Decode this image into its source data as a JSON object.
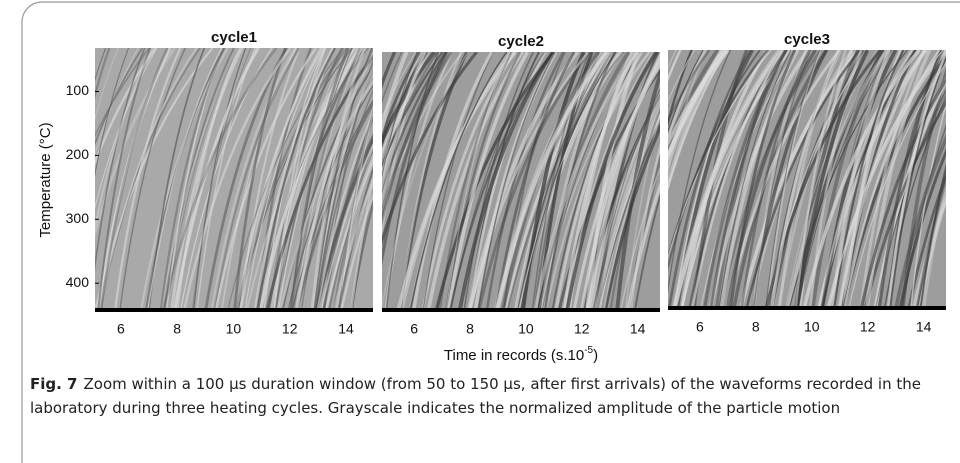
{
  "chart_data": [
    {
      "type": "image",
      "title": "cycle1",
      "xlim": [
        5.08,
        14.96
      ],
      "ylim": [
        32,
        445
      ],
      "xticks": [
        6,
        8,
        10,
        12,
        14
      ],
      "yticks": [
        100,
        200,
        300,
        400
      ],
      "y_label": "Temperature (°C)"
    },
    {
      "type": "image",
      "title": "cycle2",
      "xlim": [
        4.85,
        14.8
      ],
      "ylim": [
        32,
        445
      ],
      "xticks": [
        6,
        8,
        10,
        12,
        14
      ],
      "x_label": [
        "Time in records (s.10",
        "-5",
        ")"
      ]
    },
    {
      "type": "image",
      "title": "cycle3",
      "xlim": [
        4.86,
        14.8
      ],
      "ylim": [
        32,
        445
      ],
      "xticks": [
        6,
        8,
        10,
        12,
        14
      ]
    }
  ],
  "caption": {
    "label": "Fig. 7",
    "text": "Zoom within a 100 µs duration window (from 50 to 150 µs, after first arrivals) of the waveforms recorded in the laboratory during three heating cycles. Grayscale indicates the normalized amplitude of the particle motion"
  }
}
